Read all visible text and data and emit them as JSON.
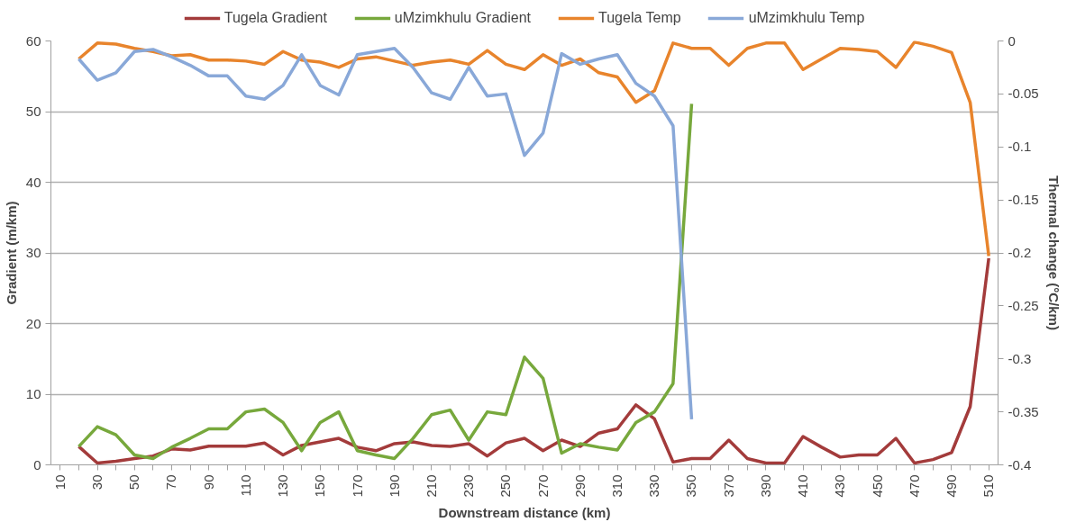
{
  "chart_data": {
    "type": "line",
    "xlabel": "Downstream distance (km)",
    "ylabel": "Gradient (m/km)",
    "y2label": "Thermal change (°C/km)",
    "categories": [
      "10",
      null,
      "30",
      null,
      "50",
      null,
      "70",
      null,
      "90",
      null,
      "110",
      null,
      "130",
      null,
      "150",
      null,
      "170",
      null,
      "190",
      null,
      "210",
      null,
      "230",
      null,
      "250",
      null,
      "270",
      null,
      "290",
      null,
      "310",
      null,
      "330",
      null,
      "350",
      null,
      "370",
      null,
      "390",
      null,
      "410",
      null,
      "430",
      null,
      "450",
      null,
      "470",
      null,
      "490",
      null,
      "510"
    ],
    "series": [
      {
        "name": "Tugela Gradient",
        "color": "#a33b3b",
        "values": [
          null,
          2.6,
          0.25,
          0.5,
          0.9,
          1.25,
          2.25,
          2.1,
          2.65,
          2.65,
          2.65,
          3.1,
          1.4,
          2.75,
          3.25,
          3.75,
          2.5,
          2,
          3,
          3.25,
          2.75,
          2.6,
          3,
          1.25,
          3.1,
          3.75,
          2,
          3.5,
          2.6,
          4.5,
          5.1,
          8.5,
          6.5,
          0.4,
          0.9,
          0.9,
          3.5,
          0.9,
          0.25,
          0.25,
          4,
          2.5,
          1.1,
          1.4,
          1.4,
          3.75,
          0.25,
          0.75,
          1.75,
          8.25,
          29.25
        ]
      },
      {
        "name": "uMzimkhulu Gradient",
        "color": "#77a83c",
        "values": [
          null,
          2.6,
          5.4,
          4.25,
          1.4,
          0.9,
          2.5,
          3.75,
          5.1,
          5.1,
          7.5,
          7.9,
          6,
          2,
          6,
          7.5,
          2,
          1.4,
          0.9,
          3.75,
          7.1,
          7.75,
          3.5,
          7.5,
          7.1,
          15.25,
          12.25,
          1.65,
          3,
          2.5,
          2.1,
          6,
          7.5,
          11.5,
          51.1,
          null,
          null,
          null,
          null,
          null,
          null,
          null,
          null,
          null,
          null,
          null,
          null,
          null,
          null,
          null,
          null
        ]
      },
      {
        "name": "Tugela Temp",
        "color": "#e8842c",
        "axis": "y2",
        "values": [
          null,
          -0.017,
          -0.002,
          -0.003,
          -0.007,
          -0.01,
          -0.014,
          -0.013,
          -0.018,
          -0.018,
          -0.019,
          -0.022,
          -0.01,
          -0.018,
          -0.02,
          -0.025,
          -0.017,
          -0.015,
          -0.019,
          -0.023,
          -0.02,
          -0.018,
          -0.022,
          -0.009,
          -0.022,
          -0.027,
          -0.013,
          -0.023,
          -0.017,
          -0.03,
          -0.034,
          -0.058,
          -0.047,
          -0.002,
          -0.007,
          -0.007,
          -0.023,
          -0.007,
          -0.002,
          -0.002,
          -0.027,
          -0.017,
          -0.007,
          -0.008,
          -0.01,
          -0.025,
          -0.001,
          -0.005,
          -0.011,
          -0.058,
          -0.203
        ]
      },
      {
        "name": "uMzimkhulu Temp",
        "color": "#89a8d8",
        "axis": "y2",
        "values": [
          null,
          -0.017,
          -0.037,
          -0.03,
          -0.01,
          -0.008,
          -0.015,
          -0.023,
          -0.033,
          -0.033,
          -0.052,
          -0.055,
          -0.042,
          -0.013,
          -0.042,
          -0.051,
          -0.013,
          -0.01,
          -0.007,
          -0.025,
          -0.049,
          -0.055,
          -0.025,
          -0.052,
          -0.05,
          -0.108,
          -0.087,
          -0.012,
          -0.022,
          -0.017,
          -0.013,
          -0.04,
          -0.052,
          -0.08,
          -0.357,
          null,
          null,
          null,
          null,
          null,
          null,
          null,
          null,
          null,
          null,
          null,
          null,
          null,
          null,
          null,
          null
        ]
      }
    ],
    "ylim": [
      0,
      60
    ],
    "yticks": [
      0,
      10,
      20,
      30,
      40,
      50,
      60
    ],
    "y2lim": [
      -0.4,
      0
    ],
    "y2ticks": [
      -0.4,
      -0.35,
      -0.3,
      -0.25,
      -0.2,
      -0.15,
      -0.1,
      -0.05,
      0
    ],
    "grid": "y",
    "legend": "top",
    "marker": "none",
    "line_style": "solid"
  }
}
